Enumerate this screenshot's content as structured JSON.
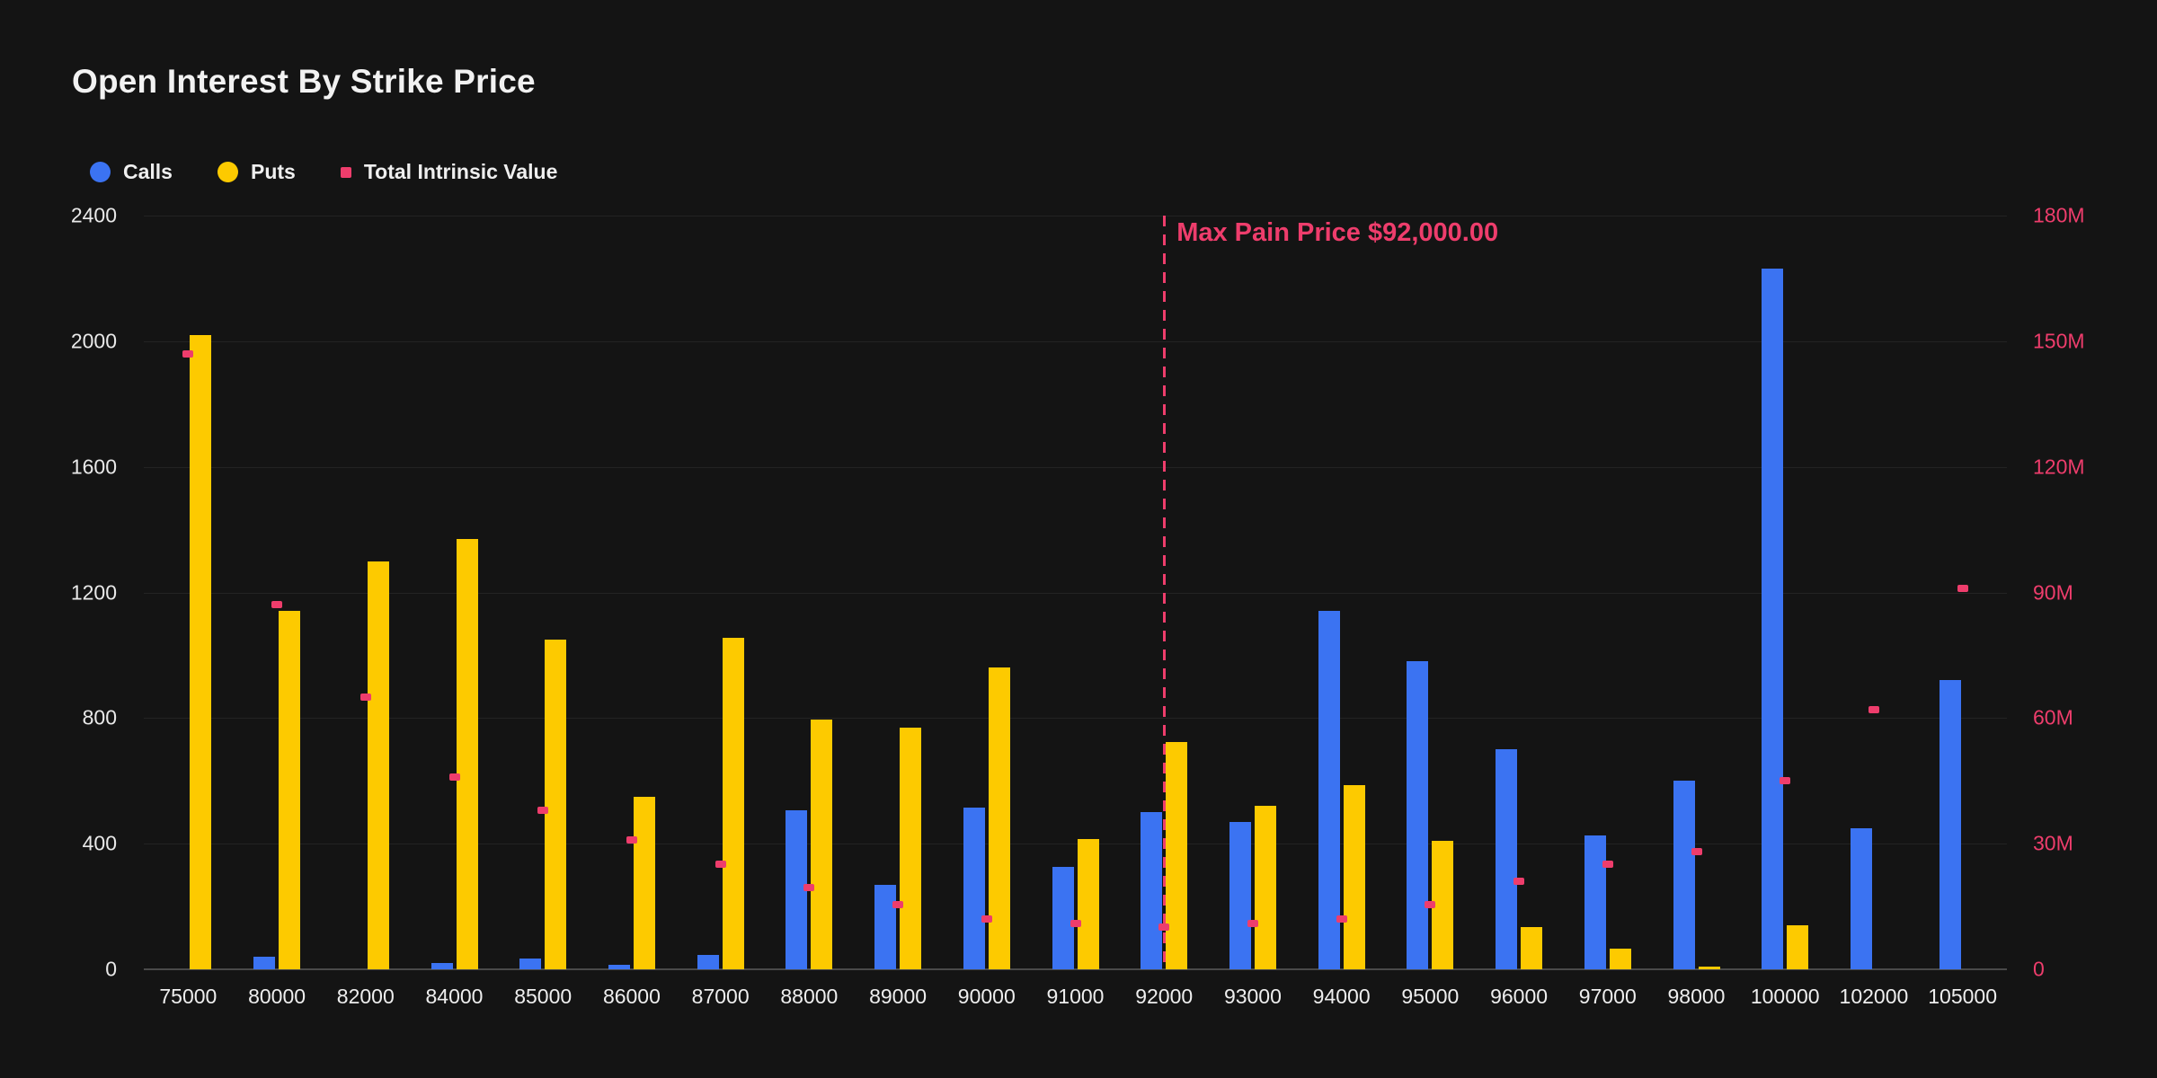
{
  "header": {
    "title": "Open Interest By Strike Price"
  },
  "colors": {
    "background": "#141414",
    "calls_blue": "#3b73f2",
    "puts_yellow": "#fdca00",
    "intrinsic_pink": "#ee3d6c",
    "gridline": "#232323",
    "axis_line": "#4a4a4a",
    "text_white": "#efefef"
  },
  "legend": {
    "items": [
      {
        "id": "calls",
        "label": "Calls",
        "color": "#3b73f2",
        "shape": "circle"
      },
      {
        "id": "puts",
        "label": "Puts",
        "color": "#fdca00",
        "shape": "circle"
      },
      {
        "id": "tiv",
        "label": "Total Intrinsic Value",
        "color": "#ee3d6c",
        "shape": "square"
      }
    ]
  },
  "chart_data": {
    "type": "bar",
    "title": "Open Interest By Strike Price",
    "categories": [
      "75000",
      "80000",
      "82000",
      "84000",
      "85000",
      "86000",
      "87000",
      "88000",
      "89000",
      "90000",
      "91000",
      "92000",
      "93000",
      "94000",
      "95000",
      "96000",
      "97000",
      "98000",
      "100000",
      "102000",
      "105000"
    ],
    "series": [
      {
        "name": "Calls",
        "type": "bar",
        "axis": "left",
        "color": "#3b73f2",
        "values": [
          0,
          40,
          0,
          20,
          35,
          15,
          45,
          505,
          270,
          515,
          325,
          500,
          470,
          1140,
          980,
          700,
          425,
          600,
          2230,
          450,
          920
        ]
      },
      {
        "name": "Puts",
        "type": "bar",
        "axis": "left",
        "color": "#fdca00",
        "values": [
          2020,
          1140,
          1300,
          1370,
          1050,
          550,
          1055,
          795,
          770,
          960,
          415,
          725,
          520,
          585,
          410,
          135,
          65,
          10,
          140,
          0,
          0
        ]
      },
      {
        "name": "Total Intrinsic Value",
        "type": "scatter",
        "axis": "right",
        "color": "#ee3d6c",
        "values_millions": [
          147,
          87,
          65,
          46,
          38,
          31,
          25,
          19.5,
          15.5,
          12,
          11,
          10,
          11,
          12,
          15.5,
          21,
          25,
          28,
          45,
          62,
          91
        ]
      }
    ],
    "left_axis": {
      "tick_labels": [
        "0",
        "400",
        "800",
        "1200",
        "1600",
        "2000",
        "2400"
      ],
      "min": 0,
      "max": 2400
    },
    "right_axis": {
      "tick_labels": [
        "0",
        "30M",
        "60M",
        "90M",
        "120M",
        "150M",
        "180M"
      ],
      "min": 0,
      "max_millions": 180
    },
    "annotations": [
      {
        "type": "vline",
        "at_category": "92000",
        "label": "Max Pain Price $92,000.00",
        "color": "#ee3d6c"
      }
    ],
    "grid": "horizontal-only",
    "legend_position": "top-left"
  }
}
